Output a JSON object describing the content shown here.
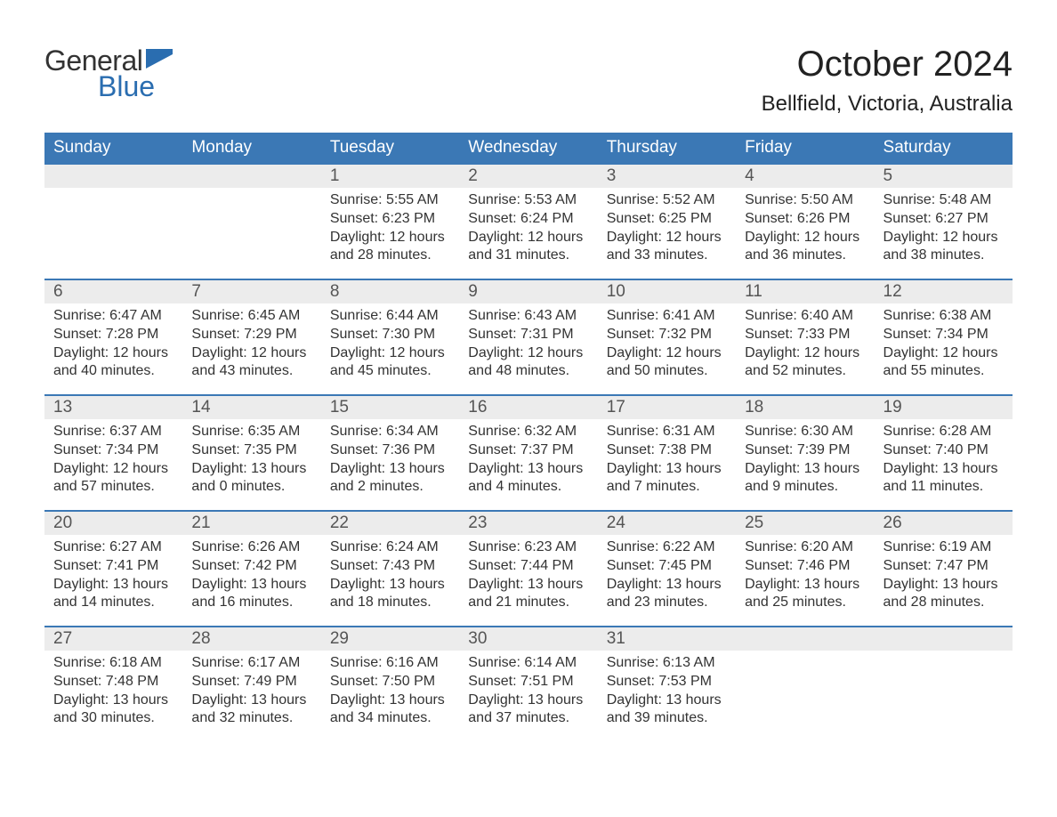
{
  "logo": {
    "word1": "General",
    "word2": "Blue",
    "flag_color": "#2a6db0"
  },
  "title": "October 2024",
  "location": "Bellfield, Victoria, Australia",
  "colors": {
    "header_bg": "#3b78b5",
    "header_text": "#ffffff",
    "daybar_bg": "#ececec",
    "row_border": "#3b78b5",
    "body_text": "#333333",
    "background": "#ffffff"
  },
  "day_names": [
    "Sunday",
    "Monday",
    "Tuesday",
    "Wednesday",
    "Thursday",
    "Friday",
    "Saturday"
  ],
  "weeks": [
    [
      null,
      null,
      {
        "n": "1",
        "sunrise": "5:55 AM",
        "sunset": "6:23 PM",
        "daylight": "12 hours and 28 minutes."
      },
      {
        "n": "2",
        "sunrise": "5:53 AM",
        "sunset": "6:24 PM",
        "daylight": "12 hours and 31 minutes."
      },
      {
        "n": "3",
        "sunrise": "5:52 AM",
        "sunset": "6:25 PM",
        "daylight": "12 hours and 33 minutes."
      },
      {
        "n": "4",
        "sunrise": "5:50 AM",
        "sunset": "6:26 PM",
        "daylight": "12 hours and 36 minutes."
      },
      {
        "n": "5",
        "sunrise": "5:48 AM",
        "sunset": "6:27 PM",
        "daylight": "12 hours and 38 minutes."
      }
    ],
    [
      {
        "n": "6",
        "sunrise": "6:47 AM",
        "sunset": "7:28 PM",
        "daylight": "12 hours and 40 minutes."
      },
      {
        "n": "7",
        "sunrise": "6:45 AM",
        "sunset": "7:29 PM",
        "daylight": "12 hours and 43 minutes."
      },
      {
        "n": "8",
        "sunrise": "6:44 AM",
        "sunset": "7:30 PM",
        "daylight": "12 hours and 45 minutes."
      },
      {
        "n": "9",
        "sunrise": "6:43 AM",
        "sunset": "7:31 PM",
        "daylight": "12 hours and 48 minutes."
      },
      {
        "n": "10",
        "sunrise": "6:41 AM",
        "sunset": "7:32 PM",
        "daylight": "12 hours and 50 minutes."
      },
      {
        "n": "11",
        "sunrise": "6:40 AM",
        "sunset": "7:33 PM",
        "daylight": "12 hours and 52 minutes."
      },
      {
        "n": "12",
        "sunrise": "6:38 AM",
        "sunset": "7:34 PM",
        "daylight": "12 hours and 55 minutes."
      }
    ],
    [
      {
        "n": "13",
        "sunrise": "6:37 AM",
        "sunset": "7:34 PM",
        "daylight": "12 hours and 57 minutes."
      },
      {
        "n": "14",
        "sunrise": "6:35 AM",
        "sunset": "7:35 PM",
        "daylight": "13 hours and 0 minutes."
      },
      {
        "n": "15",
        "sunrise": "6:34 AM",
        "sunset": "7:36 PM",
        "daylight": "13 hours and 2 minutes."
      },
      {
        "n": "16",
        "sunrise": "6:32 AM",
        "sunset": "7:37 PM",
        "daylight": "13 hours and 4 minutes."
      },
      {
        "n": "17",
        "sunrise": "6:31 AM",
        "sunset": "7:38 PM",
        "daylight": "13 hours and 7 minutes."
      },
      {
        "n": "18",
        "sunrise": "6:30 AM",
        "sunset": "7:39 PM",
        "daylight": "13 hours and 9 minutes."
      },
      {
        "n": "19",
        "sunrise": "6:28 AM",
        "sunset": "7:40 PM",
        "daylight": "13 hours and 11 minutes."
      }
    ],
    [
      {
        "n": "20",
        "sunrise": "6:27 AM",
        "sunset": "7:41 PM",
        "daylight": "13 hours and 14 minutes."
      },
      {
        "n": "21",
        "sunrise": "6:26 AM",
        "sunset": "7:42 PM",
        "daylight": "13 hours and 16 minutes."
      },
      {
        "n": "22",
        "sunrise": "6:24 AM",
        "sunset": "7:43 PM",
        "daylight": "13 hours and 18 minutes."
      },
      {
        "n": "23",
        "sunrise": "6:23 AM",
        "sunset": "7:44 PM",
        "daylight": "13 hours and 21 minutes."
      },
      {
        "n": "24",
        "sunrise": "6:22 AM",
        "sunset": "7:45 PM",
        "daylight": "13 hours and 23 minutes."
      },
      {
        "n": "25",
        "sunrise": "6:20 AM",
        "sunset": "7:46 PM",
        "daylight": "13 hours and 25 minutes."
      },
      {
        "n": "26",
        "sunrise": "6:19 AM",
        "sunset": "7:47 PM",
        "daylight": "13 hours and 28 minutes."
      }
    ],
    [
      {
        "n": "27",
        "sunrise": "6:18 AM",
        "sunset": "7:48 PM",
        "daylight": "13 hours and 30 minutes."
      },
      {
        "n": "28",
        "sunrise": "6:17 AM",
        "sunset": "7:49 PM",
        "daylight": "13 hours and 32 minutes."
      },
      {
        "n": "29",
        "sunrise": "6:16 AM",
        "sunset": "7:50 PM",
        "daylight": "13 hours and 34 minutes."
      },
      {
        "n": "30",
        "sunrise": "6:14 AM",
        "sunset": "7:51 PM",
        "daylight": "13 hours and 37 minutes."
      },
      {
        "n": "31",
        "sunrise": "6:13 AM",
        "sunset": "7:53 PM",
        "daylight": "13 hours and 39 minutes."
      },
      null,
      null
    ]
  ],
  "labels": {
    "sunrise": "Sunrise:",
    "sunset": "Sunset:",
    "daylight": "Daylight:"
  }
}
